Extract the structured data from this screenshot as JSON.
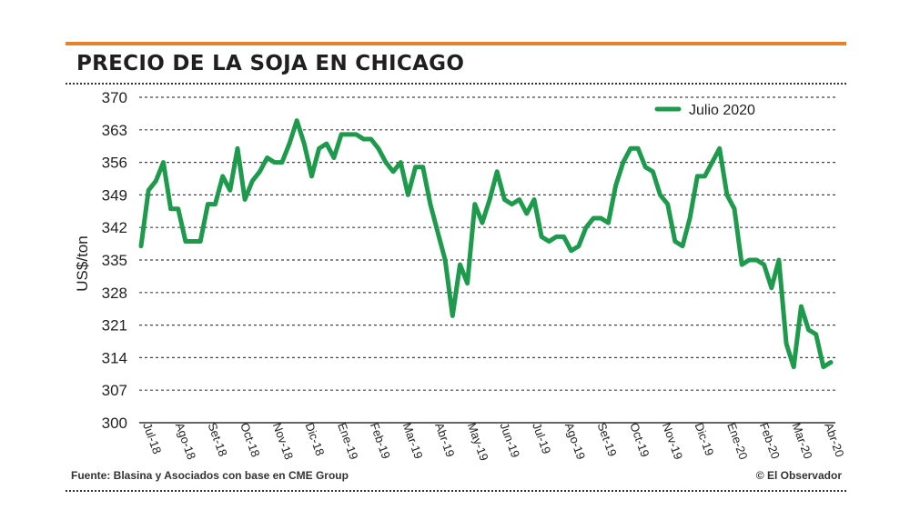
{
  "header": {
    "title": "PRECIO DE LA SOJA EN CHICAGO"
  },
  "footer": {
    "source": "Fuente: Blasina y Asociados con base en CME Group",
    "credit": "© El Observador"
  },
  "colors": {
    "accent_rule": "#e8822a",
    "series": "#1e9a4c",
    "grid": "#444444"
  },
  "chart_data": {
    "type": "line",
    "title": "PRECIO DE LA SOJA EN CHICAGO",
    "ylabel": "US$/ton",
    "xlabel": "",
    "ylim": [
      300,
      370
    ],
    "yticks": [
      300,
      307,
      314,
      321,
      328,
      335,
      342,
      349,
      356,
      363,
      370
    ],
    "grid": "horizontal dotted",
    "legend_position": "top-right",
    "xtick_labels": [
      "Jul-18",
      "Ago-18",
      "Set-18",
      "Oct-18",
      "Nov-18",
      "Dic-18",
      "Ene-19",
      "Feb-19",
      "Mar-19",
      "Abr-19",
      "May-19",
      "Jun-19",
      "Jul-19",
      "Ago-19",
      "Set-19",
      "Oct-19",
      "Nov-19",
      "Dic-19",
      "Ene-20",
      "Feb-20",
      "Mar-20",
      "Abr-20"
    ],
    "series": [
      {
        "name": "Julio 2020",
        "values": [
          338,
          350,
          352,
          356,
          346,
          346,
          339,
          339,
          339,
          347,
          347,
          353,
          350,
          359,
          348,
          352,
          354,
          357,
          356,
          356,
          360,
          365,
          360,
          353,
          359,
          360,
          357,
          362,
          362,
          362,
          361,
          361,
          359,
          356,
          354,
          356,
          349,
          355,
          355,
          347,
          341,
          335,
          323,
          334,
          330,
          347,
          343,
          348,
          354,
          348,
          347,
          348,
          345,
          348,
          340,
          339,
          340,
          340,
          337,
          338,
          342,
          344,
          344,
          343,
          351,
          356,
          359,
          359,
          355,
          354,
          349,
          347,
          339,
          338,
          344,
          353,
          353,
          356,
          359,
          349,
          346,
          334,
          335,
          335,
          334,
          329,
          335,
          317,
          312,
          325,
          320,
          319,
          312,
          313
        ]
      }
    ]
  }
}
